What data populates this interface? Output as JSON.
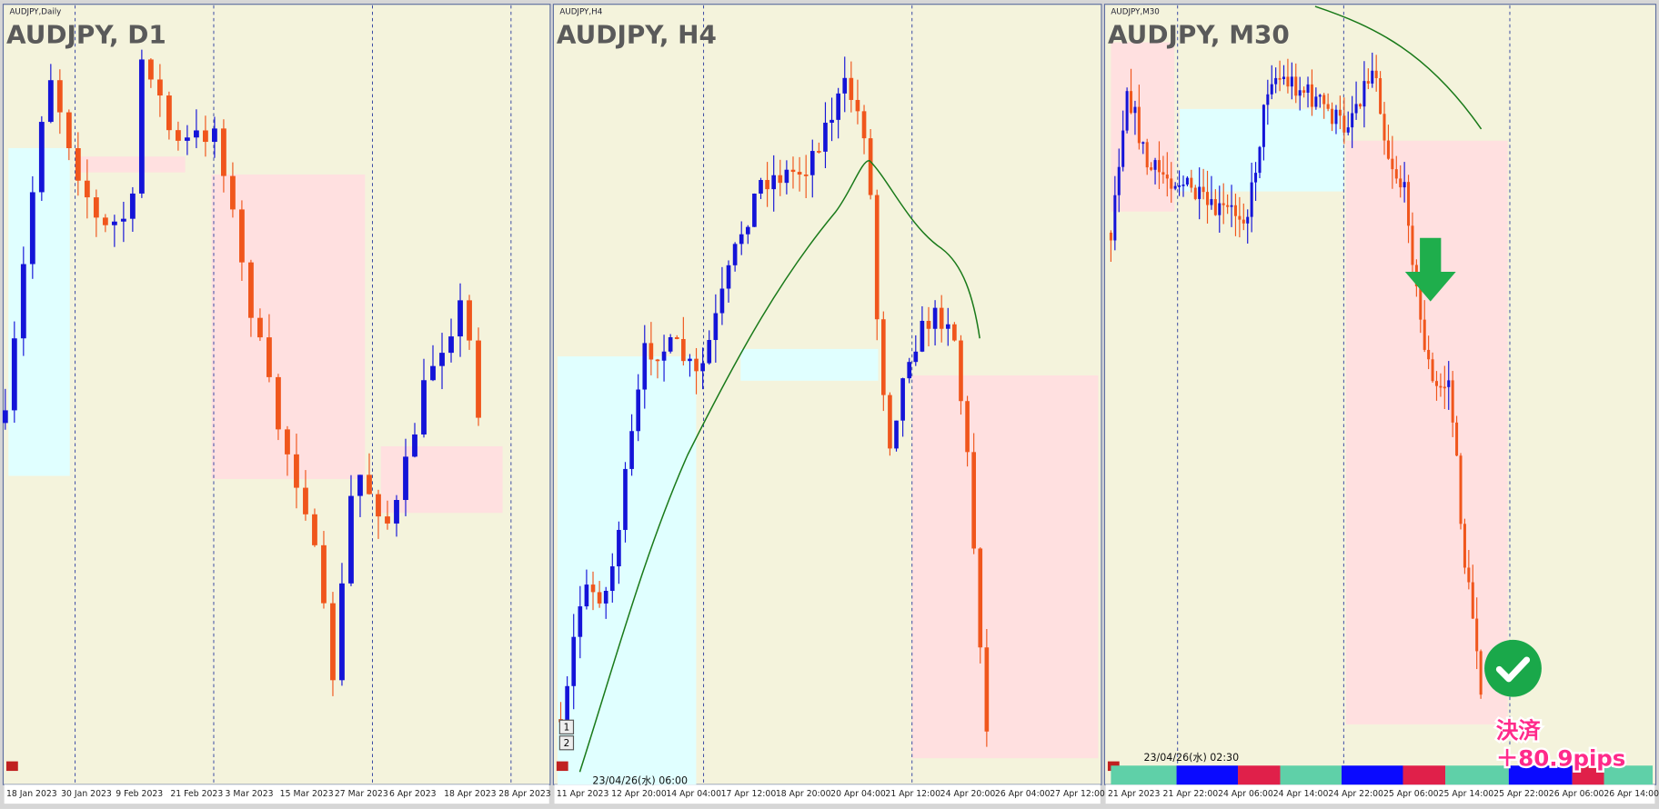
{
  "panels": [
    {
      "label": "AUDJPY,Daily",
      "title": "AUDJPY, D1",
      "x_labels": [
        "18 Jan 2023",
        "30 Jan 2023",
        "9 Feb 2023",
        "21 Feb 2023",
        "3 Mar 2023",
        "15 Mar 2023",
        "27 Mar 2023",
        "6 Apr 2023",
        "18 Apr 2023",
        "28 Apr 2023"
      ]
    },
    {
      "label": "AUDJPY,H4",
      "title": "AUDJPY, H4",
      "x_labels": [
        "11 Apr 2023",
        "12 Apr 20:00",
        "14 Apr 04:00",
        "17 Apr 12:00",
        "18 Apr 20:00",
        "20 Apr 04:00",
        "21 Apr 12:00",
        "24 Apr 20:00",
        "26 Apr 04:00",
        "27 Apr 12:00"
      ],
      "timestamp": "23/04/26(水) 06:00",
      "buttons": [
        "1",
        "2"
      ]
    },
    {
      "label": "AUDJPY,M30",
      "title": "AUDJPY, M30",
      "x_labels": [
        "21 Apr 2023",
        "21 Apr 22:00",
        "24 Apr 06:00",
        "24 Apr 14:00",
        "24 Apr 22:00",
        "25 Apr 06:00",
        "25 Apr 14:00",
        "25 Apr 22:00",
        "26 Apr 06:00",
        "26 Apr 14:00"
      ],
      "timestamp": "23/04/26(水) 02:30"
    }
  ],
  "annotation": {
    "line1": "決済",
    "line2": "＋80.9pips"
  }
}
